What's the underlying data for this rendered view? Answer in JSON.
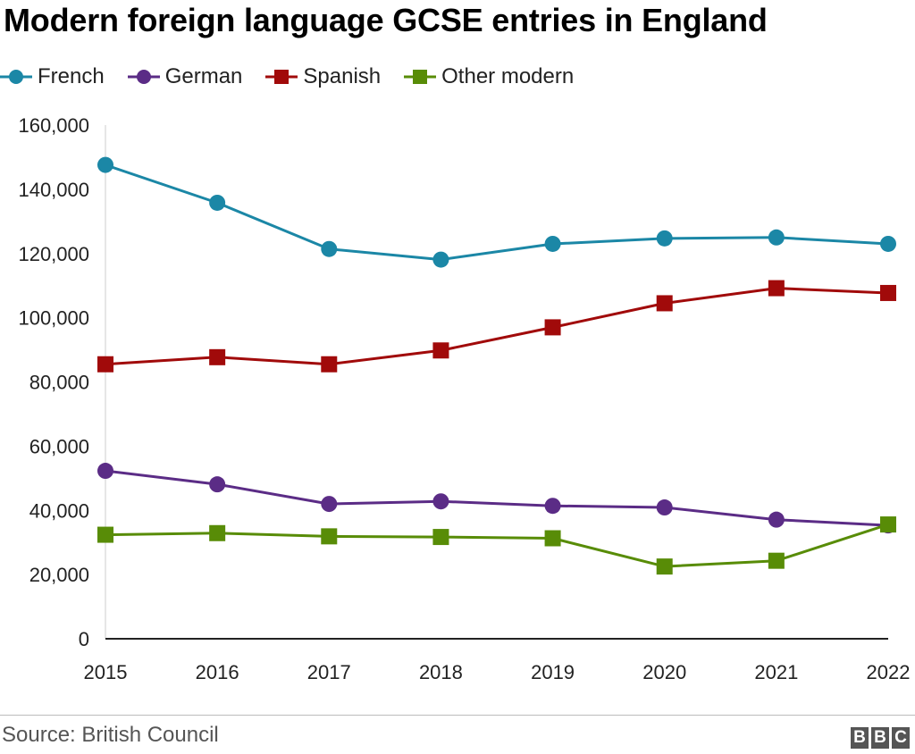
{
  "title": "Modern foreign language GCSE entries in England",
  "source": "Source: British Council",
  "logo": [
    "B",
    "B",
    "C"
  ],
  "legend": [
    {
      "label": "French",
      "color": "#1b87a6",
      "marker": "circle"
    },
    {
      "label": "German",
      "color": "#5b2c86",
      "marker": "circle"
    },
    {
      "label": "Spanish",
      "color": "#a10a0a",
      "marker": "square"
    },
    {
      "label": "Other modern",
      "color": "#588c07",
      "marker": "square"
    }
  ],
  "chart_data": {
    "type": "line",
    "x": [
      "2015",
      "2016",
      "2017",
      "2018",
      "2019",
      "2020",
      "2021",
      "2022"
    ],
    "ylim": [
      0,
      160000
    ],
    "yticks": [
      0,
      20000,
      40000,
      60000,
      80000,
      100000,
      120000,
      140000,
      160000
    ],
    "ytick_labels": [
      "0",
      "20,000",
      "40,000",
      "60,000",
      "80,000",
      "100,000",
      "120,000",
      "140,000",
      "160,000"
    ],
    "grid": false,
    "legend_position": "top-left",
    "series": [
      {
        "name": "French",
        "color": "#1b87a6",
        "marker": "circle",
        "values": [
          147600,
          135800,
          121400,
          118100,
          123000,
          124700,
          125000,
          123000
        ]
      },
      {
        "name": "German",
        "color": "#5b2c86",
        "marker": "circle",
        "values": [
          52300,
          48100,
          42000,
          42800,
          41400,
          40900,
          37100,
          35300
        ]
      },
      {
        "name": "Spanish",
        "color": "#a10a0a",
        "marker": "square",
        "values": [
          85500,
          87700,
          85500,
          89800,
          97000,
          104500,
          109200,
          107700
        ]
      },
      {
        "name": "Other modern",
        "color": "#588c07",
        "marker": "square",
        "values": [
          32400,
          32900,
          31900,
          31700,
          31300,
          22500,
          24300,
          35600
        ]
      }
    ]
  }
}
